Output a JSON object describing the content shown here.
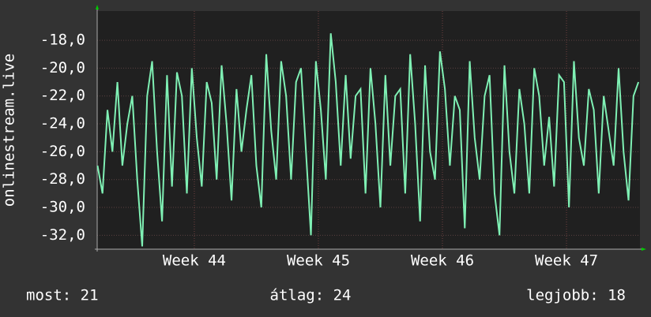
{
  "chart_data": {
    "type": "line",
    "ylabel": "onlinestream.live",
    "x": [
      43.22,
      43.26,
      43.3,
      43.34,
      43.38,
      43.42,
      43.46,
      43.5,
      43.54,
      43.58,
      43.62,
      43.66,
      43.7,
      43.74,
      43.78,
      43.82,
      43.86,
      43.9,
      43.94,
      43.98,
      44.02,
      44.06,
      44.1,
      44.14,
      44.18,
      44.22,
      44.26,
      44.3,
      44.34,
      44.38,
      44.42,
      44.46,
      44.5,
      44.54,
      44.58,
      44.62,
      44.66,
      44.7,
      44.74,
      44.78,
      44.82,
      44.86,
      44.9,
      44.94,
      44.98,
      45.02,
      45.06,
      45.1,
      45.14,
      45.18,
      45.22,
      45.26,
      45.3,
      45.34,
      45.38,
      45.42,
      45.46,
      45.5,
      45.54,
      45.58,
      45.62,
      45.66,
      45.7,
      45.74,
      45.78,
      45.82,
      45.86,
      45.9,
      45.94,
      45.98,
      46.02,
      46.06,
      46.1,
      46.14,
      46.18,
      46.22,
      46.26,
      46.3,
      46.34,
      46.38,
      46.42,
      46.46,
      46.5,
      46.54,
      46.58,
      46.62,
      46.66,
      46.7,
      46.74,
      46.78,
      46.82,
      46.86,
      46.9,
      46.94,
      46.98,
      47.02,
      47.06,
      47.1,
      47.14,
      47.18,
      47.22,
      47.26,
      47.3,
      47.34,
      47.38,
      47.42,
      47.46,
      47.5,
      47.54,
      47.58
    ],
    "values": [
      -27,
      -29,
      -23,
      -26,
      -21,
      -27,
      -24,
      -22,
      -28,
      -32.8,
      -22,
      -19.5,
      -26,
      -31,
      -20.5,
      -28.5,
      -20.3,
      -22,
      -29,
      -20,
      -25,
      -28.5,
      -21,
      -22.5,
      -28,
      -19.8,
      -24,
      -29.5,
      -21.5,
      -26,
      -23,
      -20.5,
      -27,
      -30,
      -19,
      -24.5,
      -28,
      -19.5,
      -22,
      -28,
      -21,
      -20,
      -26,
      -32,
      -19.5,
      -23,
      -28,
      -17.5,
      -21,
      -27,
      -20.5,
      -26.5,
      -22,
      -21.5,
      -29,
      -20,
      -24,
      -30,
      -20.5,
      -27,
      -22,
      -21.5,
      -29,
      -19,
      -24,
      -31,
      -19.8,
      -26,
      -28,
      -18.8,
      -21.5,
      -27,
      -22,
      -23,
      -31.5,
      -19.5,
      -25,
      -28,
      -22,
      -20.5,
      -29,
      -32,
      -19.8,
      -26,
      -29,
      -21.5,
      -24,
      -29,
      -20,
      -22,
      -27,
      -23.5,
      -28.5,
      -20.5,
      -21,
      -30,
      -19.5,
      -25,
      -27,
      -21.5,
      -23,
      -29,
      -22,
      -24.5,
      -27,
      -20,
      -26,
      -29.5,
      -22,
      -21
    ],
    "color": "#7ff0b4",
    "xlim": [
      43.217,
      47.592
    ],
    "xticks": [
      {
        "value": 44,
        "label": "Week 44"
      },
      {
        "value": 45,
        "label": "Week 45"
      },
      {
        "value": 46,
        "label": "Week 46"
      },
      {
        "value": 47,
        "label": "Week 47"
      }
    ],
    "ylim": [
      -33.0,
      -15.9
    ],
    "yticks": [
      {
        "value": -32,
        "label": "-32,0"
      },
      {
        "value": -30,
        "label": "-30,0"
      },
      {
        "value": -28,
        "label": "-28,0"
      },
      {
        "value": -26,
        "label": "-26,0"
      },
      {
        "value": -24,
        "label": "-24,0"
      },
      {
        "value": -22,
        "label": "-22,0"
      },
      {
        "value": -20,
        "label": "-20,0"
      },
      {
        "value": -18,
        "label": "-18,0"
      }
    ],
    "grid": true,
    "annotations": [
      "most: 21",
      "átlag: 24",
      "legjobb: 18"
    ]
  }
}
